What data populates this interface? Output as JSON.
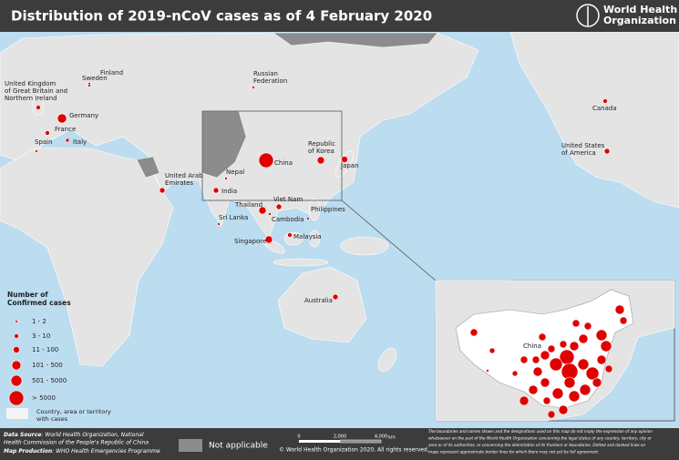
{
  "header": {
    "title": "Distribution of 2019-nCoV cases as of 4 February 2020",
    "logo_lines": [
      "World Health",
      "Organization"
    ]
  },
  "map": {
    "labels": [
      {
        "lines": [
          "Finland"
        ]
      },
      {
        "lines": [
          "Sweden"
        ]
      },
      {
        "lines": [
          "United Kingdom",
          "of Great Britain and",
          "Northern Ireland"
        ]
      },
      {
        "lines": [
          "Germany"
        ]
      },
      {
        "lines": [
          "France"
        ]
      },
      {
        "lines": [
          "Italy"
        ]
      },
      {
        "lines": [
          "Spain"
        ]
      },
      {
        "lines": [
          "Russian",
          "Federation"
        ]
      },
      {
        "lines": [
          "Canada"
        ]
      },
      {
        "lines": [
          "United States",
          "of America"
        ]
      },
      {
        "lines": [
          "Republic",
          "of Korea"
        ]
      },
      {
        "lines": [
          "Japan"
        ]
      },
      {
        "lines": [
          "China"
        ]
      },
      {
        "lines": [
          "Nepal"
        ]
      },
      {
        "lines": [
          "India"
        ]
      },
      {
        "lines": [
          "United Arab",
          "Emirates"
        ]
      },
      {
        "lines": [
          "Sri Lanka"
        ]
      },
      {
        "lines": [
          "Thailand"
        ]
      },
      {
        "lines": [
          "Viet Nam"
        ]
      },
      {
        "lines": [
          "Cambodia"
        ]
      },
      {
        "lines": [
          "Philippines"
        ]
      },
      {
        "lines": [
          "Singapore"
        ]
      },
      {
        "lines": [
          "Malaysia"
        ]
      },
      {
        "lines": [
          "Australia"
        ]
      }
    ],
    "inset_label": "China"
  },
  "legend": {
    "title": [
      "Number of",
      "Confirmed cases"
    ],
    "classes": [
      "1 - 2",
      "3 - 10",
      "11 - 100",
      "101 - 500",
      "501 - 5000",
      "> 5000"
    ],
    "with_cases": [
      "Country, area or territory",
      "with cases"
    ],
    "not_applicable": "Not applicable"
  },
  "footer": {
    "data_source_label": "Data Source",
    "data_source": ": World Health Organization, National",
    "data_source_2": "Health Commission of the People's Republic of China",
    "production_label": "Map Production",
    "production": ": WHO Health Emergencies Programme",
    "scale": [
      "0",
      "2,000",
      "4,000"
    ],
    "scale_unit": "km",
    "copyright": "© World Health Organization 2020, All rights reserved.",
    "disclaimer": [
      "The boundaries and names shown and the designations used on this map do not imply the expression of any opinion",
      "whatsoever on the part of the World Health Organization concerning the legal status of any country, territory, city or",
      "area or of its authorities, or concerning the delimitation of its frontiers or boundaries. Dotted and dashed lines on",
      "maps represent approximate border lines for which there may not yet be full agreement."
    ]
  }
}
